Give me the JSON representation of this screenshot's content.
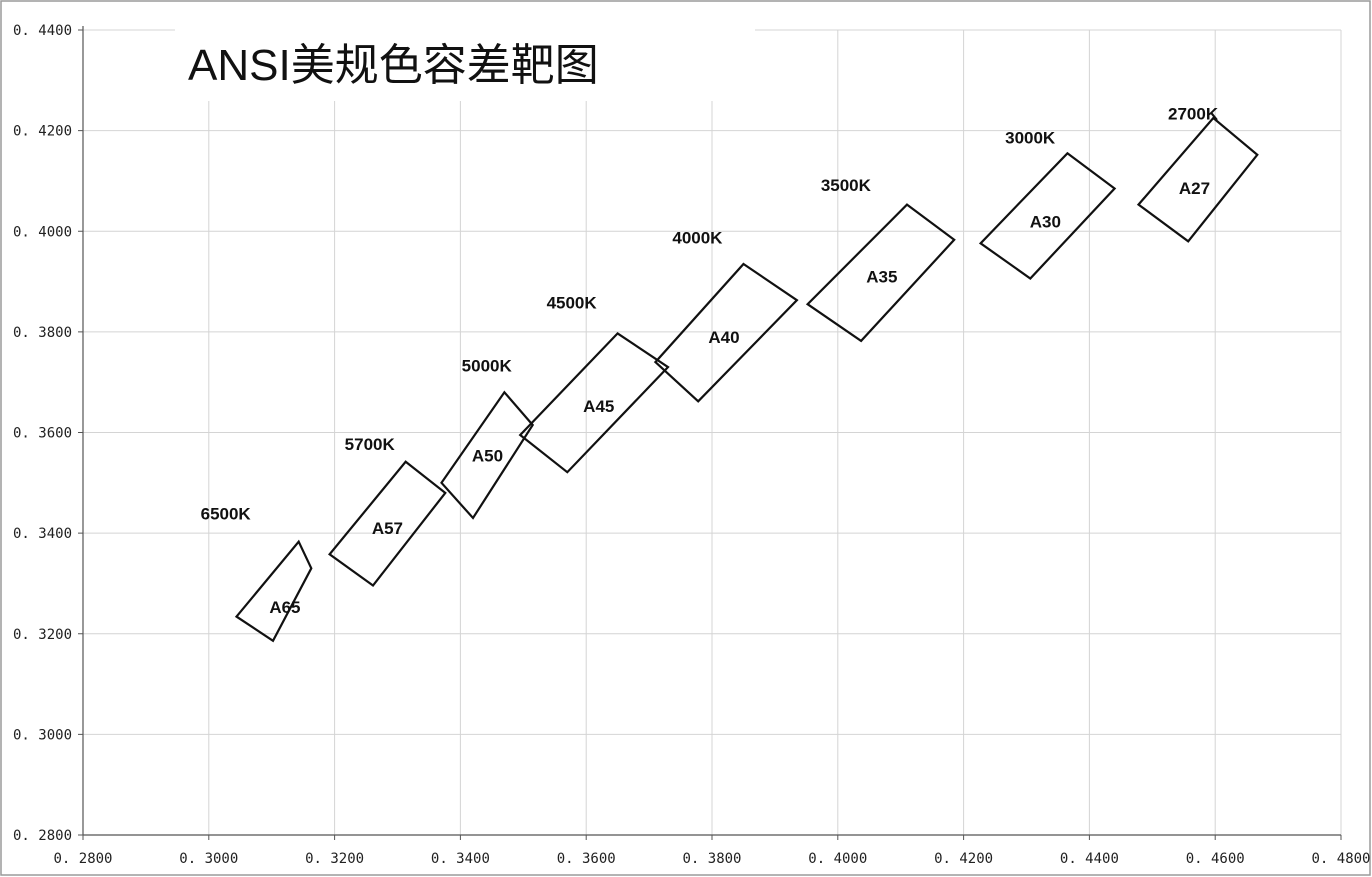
{
  "chart_data": {
    "type": "scatter",
    "title": "ANSI美规色容差靶图",
    "xlabel": "",
    "ylabel": "",
    "xlim": [
      0.28,
      0.48
    ],
    "ylim": [
      0.28,
      0.44
    ],
    "grid": true,
    "x_ticks": [
      "0. 2800",
      "0. 3000",
      "0. 3200",
      "0. 3400",
      "0. 3600",
      "0. 3800",
      "0. 4000",
      "0. 4200",
      "0. 4400",
      "0. 4600",
      "0. 4800"
    ],
    "y_ticks": [
      "0. 2800",
      "0. 3000",
      "0. 3200",
      "0. 3400",
      "0. 3600",
      "0. 3800",
      "0. 4000",
      "0. 4200",
      "0. 4400"
    ],
    "quadrangles": [
      {
        "name": "A65",
        "cct": "6500K",
        "cct_pos": [
          0.2987,
          0.3439
        ],
        "label_pos": [
          0.3121,
          0.3253
        ],
        "points": [
          [
            0.3143,
            0.3383
          ],
          [
            0.3163,
            0.333
          ],
          [
            0.3102,
            0.3186
          ],
          [
            0.3044,
            0.3234
          ]
        ]
      },
      {
        "name": "A57",
        "cct": "5700K",
        "cct_pos": [
          0.3216,
          0.3577
        ],
        "label_pos": [
          0.3284,
          0.341
        ],
        "points": [
          [
            0.3313,
            0.3542
          ],
          [
            0.3376,
            0.348
          ],
          [
            0.3261,
            0.3296
          ],
          [
            0.3192,
            0.3358
          ]
        ]
      },
      {
        "name": "A50",
        "cct": "5000K",
        "cct_pos": [
          0.3402,
          0.3733
        ],
        "label_pos": [
          0.3443,
          0.3554
        ],
        "points": [
          [
            0.347,
            0.368
          ],
          [
            0.3515,
            0.3615
          ],
          [
            0.342,
            0.343
          ],
          [
            0.337,
            0.35
          ]
        ]
      },
      {
        "name": "A45",
        "cct": "4500K",
        "cct_pos": [
          0.3537,
          0.3858
        ],
        "label_pos": [
          0.362,
          0.3653
        ],
        "points": [
          [
            0.365,
            0.3797
          ],
          [
            0.373,
            0.373
          ],
          [
            0.357,
            0.3521
          ],
          [
            0.3495,
            0.3595
          ]
        ]
      },
      {
        "name": "A40",
        "cct": "4000K",
        "cct_pos": [
          0.3737,
          0.3988
        ],
        "label_pos": [
          0.3819,
          0.379
        ],
        "points": [
          [
            0.385,
            0.3935
          ],
          [
            0.3935,
            0.3863
          ],
          [
            0.3778,
            0.3662
          ],
          [
            0.371,
            0.374
          ]
        ]
      },
      {
        "name": "A35",
        "cct": "3500K",
        "cct_pos": [
          0.3973,
          0.4092
        ],
        "label_pos": [
          0.407,
          0.391
        ],
        "points": [
          [
            0.411,
            0.4053
          ],
          [
            0.4185,
            0.3983
          ],
          [
            0.4037,
            0.3782
          ],
          [
            0.3952,
            0.3855
          ]
        ]
      },
      {
        "name": "A30",
        "cct": "3000K",
        "cct_pos": [
          0.4266,
          0.4186
        ],
        "label_pos": [
          0.433,
          0.4019
        ],
        "points": [
          [
            0.4365,
            0.4155
          ],
          [
            0.444,
            0.4085
          ],
          [
            0.4306,
            0.3906
          ],
          [
            0.4227,
            0.3976
          ]
        ]
      },
      {
        "name": "A27",
        "cct": "2700K",
        "cct_pos": [
          0.4525,
          0.4234
        ],
        "label_pos": [
          0.4567,
          0.4086
        ],
        "points": [
          [
            0.4597,
            0.4225
          ],
          [
            0.4667,
            0.4152
          ],
          [
            0.4557,
            0.398
          ],
          [
            0.4478,
            0.4053
          ]
        ]
      }
    ]
  }
}
